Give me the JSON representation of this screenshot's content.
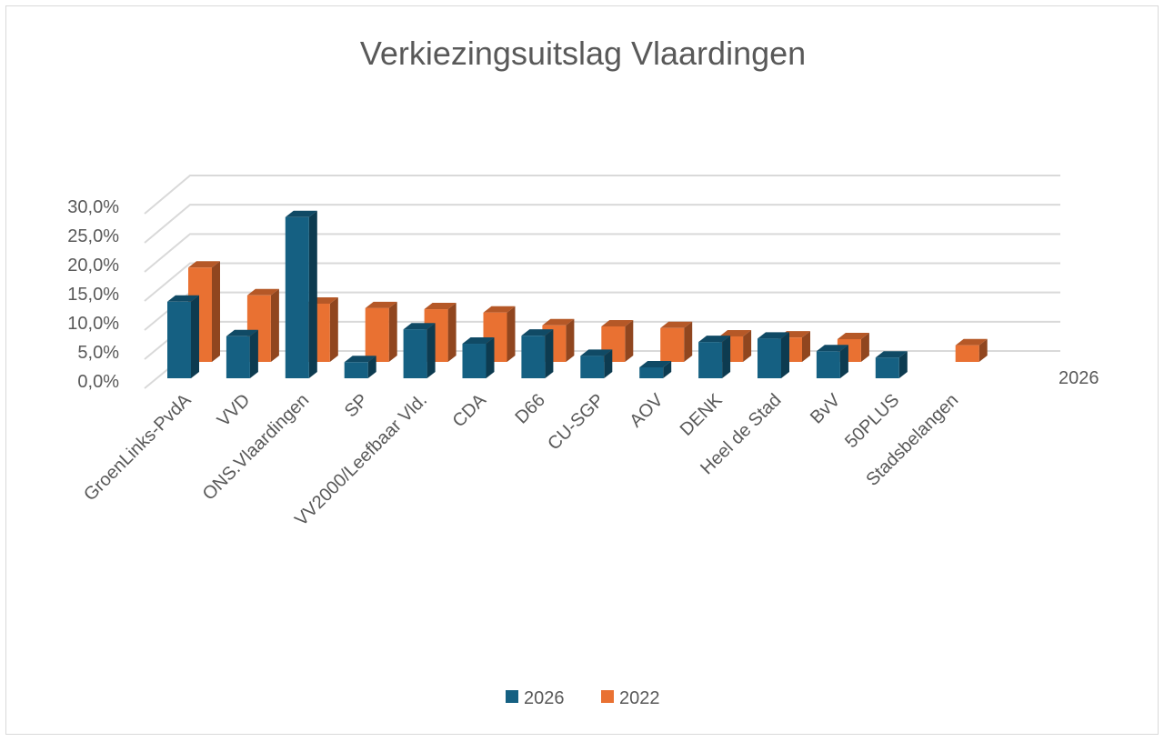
{
  "chart_data": {
    "type": "bar",
    "subtype": "3d-clustered-column",
    "title": "Verkiezingsuitslag Vlaardingen",
    "categories": [
      "GroenLinks-PvdA",
      "VVD",
      "ONS.Vlaardingen",
      "SP",
      "VV2000/Leefbaar Vld.",
      "CDA",
      "D66",
      "CU-SGP",
      "AOV",
      "DENK",
      "Heel de Stad",
      "BvV",
      "50PLUS",
      "Stadsbelangen"
    ],
    "series": [
      {
        "name": "2026",
        "color": "#156082",
        "values": [
          13.3,
          7.3,
          28.0,
          2.8,
          8.5,
          6.0,
          7.4,
          3.9,
          1.9,
          6.3,
          6.9,
          4.7,
          3.6,
          null
        ]
      },
      {
        "name": "2022",
        "color": "#E97132",
        "values": [
          17.0,
          12.0,
          10.5,
          9.7,
          9.5,
          8.9,
          6.6,
          6.4,
          6.1,
          4.6,
          4.4,
          4.1,
          null,
          3.0
        ]
      }
    ],
    "yticks": [
      "0,0%",
      "5,0%",
      "10,0%",
      "15,0%",
      "20,0%",
      "25,0%",
      "30,0%"
    ],
    "ylim": [
      0,
      30
    ],
    "depth_axis_label": "2026",
    "grid": true,
    "legend": "bottom",
    "legend_labels": [
      "2026",
      "2022"
    ]
  }
}
